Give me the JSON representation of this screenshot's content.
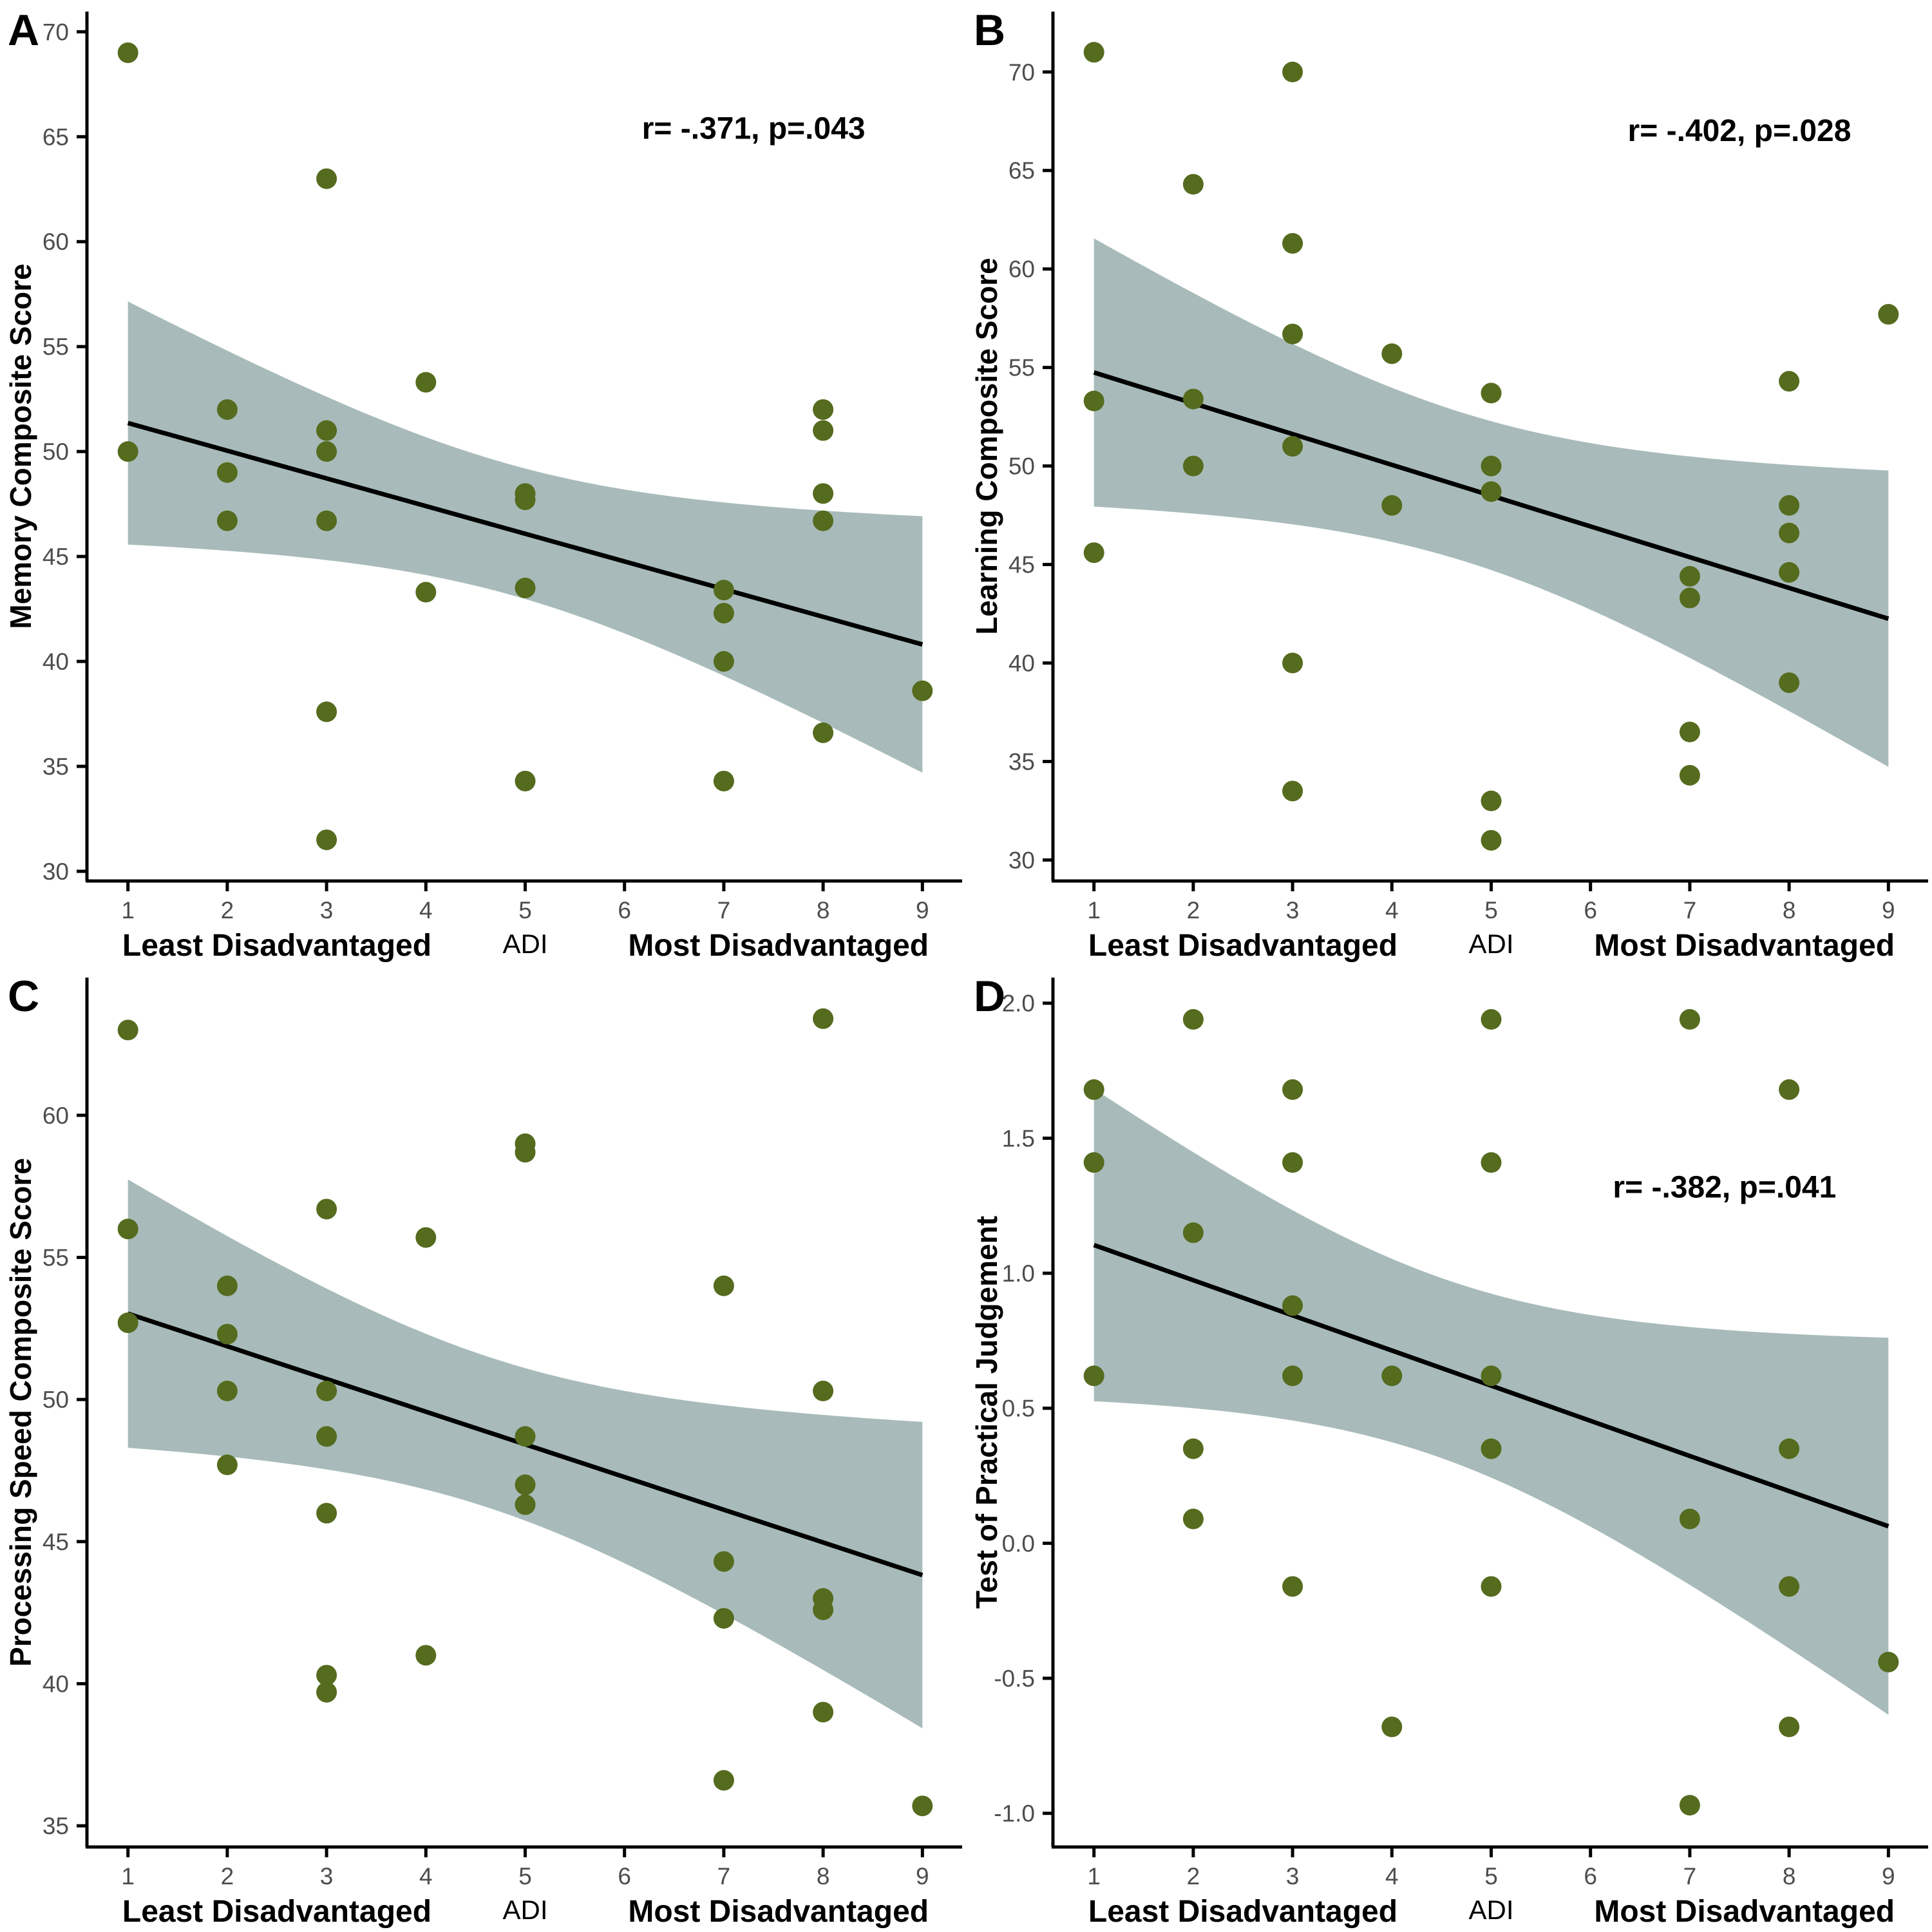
{
  "style": {
    "background": "#ffffff",
    "point_color": "#556b1e",
    "ribbon_color": "#a8bbba",
    "line_color": "#000000",
    "axis_color": "#000000",
    "tick_label_color": "#4d4d4d",
    "text_color": "#000000"
  },
  "x_axis": {
    "ticks": [
      1,
      2,
      3,
      4,
      5,
      6,
      7,
      8,
      9
    ],
    "lim": [
      0.6,
      9.4
    ],
    "smooth_range": [
      1,
      9
    ],
    "label_left": "Least Disadvantaged",
    "label_center": "ADI",
    "label_right": "Most Disadvantaged"
  },
  "chart_data": [
    {
      "type": "scatter",
      "panel": "A",
      "title": "",
      "xlabel": "ADI",
      "ylabel": "Memory Composite Score",
      "annotation": "r= -.371, p=.043",
      "annotation_at": [
        7.3,
        64.9
      ],
      "ylim": [
        29.6,
        70.9
      ],
      "y_ticks": [
        30,
        35,
        40,
        45,
        50,
        55,
        60,
        65,
        70
      ],
      "y_tick_decimals": 0,
      "fit": "linear_with_95ci",
      "legend": "none",
      "grid": "off",
      "points": [
        [
          1,
          69
        ],
        [
          1,
          50
        ],
        [
          2,
          52
        ],
        [
          2,
          49
        ],
        [
          2,
          46.7
        ],
        [
          3,
          63
        ],
        [
          3,
          51
        ],
        [
          3,
          50
        ],
        [
          3,
          46.7
        ],
        [
          3,
          37.6
        ],
        [
          3,
          31.5
        ],
        [
          4,
          53.3
        ],
        [
          4,
          43.3
        ],
        [
          5,
          48
        ],
        [
          5,
          47.7
        ],
        [
          5,
          43.5
        ],
        [
          5,
          34.3
        ],
        [
          7,
          43.4
        ],
        [
          7,
          42.3
        ],
        [
          7,
          40
        ],
        [
          7,
          34.3
        ],
        [
          8,
          52
        ],
        [
          8,
          51
        ],
        [
          8,
          48
        ],
        [
          8,
          46.7
        ],
        [
          8,
          36.6
        ],
        [
          9,
          38.6
        ]
      ]
    },
    {
      "type": "scatter",
      "panel": "B",
      "title": "",
      "xlabel": "ADI",
      "ylabel": "Learning Composite Score",
      "annotation": "r= -.402, p=.028",
      "annotation_at": [
        7.5,
        66.5
      ],
      "ylim": [
        29.0,
        73.0
      ],
      "y_ticks": [
        30,
        35,
        40,
        45,
        50,
        55,
        60,
        65,
        70
      ],
      "y_tick_decimals": 0,
      "fit": "linear_with_95ci",
      "legend": "none",
      "grid": "off",
      "points": [
        [
          1,
          71
        ],
        [
          1,
          53.3
        ],
        [
          1,
          45.6
        ],
        [
          2,
          64.3
        ],
        [
          2,
          53.4
        ],
        [
          2,
          50
        ],
        [
          3,
          70
        ],
        [
          3,
          61.3
        ],
        [
          3,
          56.7
        ],
        [
          3,
          51
        ],
        [
          3,
          40
        ],
        [
          3,
          33.5
        ],
        [
          4,
          55.7
        ],
        [
          4,
          48
        ],
        [
          5,
          53.7
        ],
        [
          5,
          50
        ],
        [
          5,
          48.7
        ],
        [
          5,
          33
        ],
        [
          5,
          31
        ],
        [
          7,
          44.4
        ],
        [
          7,
          43.3
        ],
        [
          7,
          36.5
        ],
        [
          7,
          34.3
        ],
        [
          8,
          54.3
        ],
        [
          8,
          48
        ],
        [
          8,
          46.6
        ],
        [
          8,
          44.6
        ],
        [
          8,
          39
        ],
        [
          9,
          57.7
        ]
      ]
    },
    {
      "type": "scatter",
      "panel": "C",
      "title": "",
      "xlabel": "ADI",
      "ylabel": "Processing Speed Composite Score",
      "annotation": null,
      "annotation_at": null,
      "ylim": [
        34.3,
        64.8
      ],
      "y_ticks": [
        35,
        40,
        45,
        50,
        55,
        60
      ],
      "y_tick_decimals": 0,
      "fit": "linear_with_95ci",
      "legend": "none",
      "grid": "off",
      "points": [
        [
          1,
          63
        ],
        [
          1,
          56
        ],
        [
          1,
          52.7
        ],
        [
          2,
          54
        ],
        [
          2,
          52.3
        ],
        [
          2,
          50.3
        ],
        [
          2,
          47.7
        ],
        [
          3,
          56.7
        ],
        [
          3,
          50.3
        ],
        [
          3,
          48.7
        ],
        [
          3,
          46
        ],
        [
          3,
          40.3
        ],
        [
          3,
          39.7
        ],
        [
          4,
          55.7
        ],
        [
          4,
          41
        ],
        [
          5,
          59
        ],
        [
          5,
          58.7
        ],
        [
          5,
          48.7
        ],
        [
          5,
          47
        ],
        [
          5,
          46.3
        ],
        [
          7,
          54
        ],
        [
          7,
          44.3
        ],
        [
          7,
          42.3
        ],
        [
          7,
          36.6
        ],
        [
          8,
          63.4
        ],
        [
          8,
          50.3
        ],
        [
          8,
          43
        ],
        [
          8,
          42.6
        ],
        [
          8,
          39
        ],
        [
          9,
          35.7
        ]
      ]
    },
    {
      "type": "scatter",
      "panel": "D",
      "title": "",
      "xlabel": "ADI",
      "ylabel": "Test of Practical Judgement",
      "annotation": "r= -.382, p=.041",
      "annotation_at": [
        7.35,
        1.28
      ],
      "ylim": [
        -1.12,
        2.09
      ],
      "y_ticks": [
        -1.0,
        -0.5,
        0.0,
        0.5,
        1.0,
        1.5,
        2.0
      ],
      "y_tick_decimals": 1,
      "fit": "linear_with_95ci",
      "legend": "none",
      "grid": "off",
      "points": [
        [
          1,
          1.68
        ],
        [
          1,
          1.41
        ],
        [
          1,
          0.62
        ],
        [
          2,
          1.94
        ],
        [
          2,
          1.15
        ],
        [
          2,
          0.35
        ],
        [
          2,
          0.09
        ],
        [
          3,
          1.68
        ],
        [
          3,
          1.41
        ],
        [
          3,
          0.88
        ],
        [
          3,
          0.62
        ],
        [
          3,
          -0.16
        ],
        [
          4,
          0.62
        ],
        [
          4,
          -0.68
        ],
        [
          5,
          1.94
        ],
        [
          5,
          1.41
        ],
        [
          5,
          0.62
        ],
        [
          5,
          0.35
        ],
        [
          5,
          -0.16
        ],
        [
          7,
          1.94
        ],
        [
          7,
          0.09
        ],
        [
          7,
          -0.97
        ],
        [
          8,
          1.68
        ],
        [
          8,
          0.35
        ],
        [
          8,
          -0.16
        ],
        [
          8,
          -0.68
        ],
        [
          9,
          -0.44
        ]
      ]
    }
  ]
}
